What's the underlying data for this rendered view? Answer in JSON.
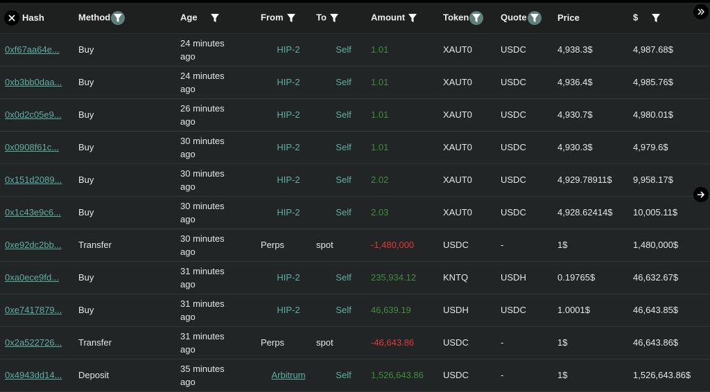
{
  "columns": [
    {
      "label": "Hash",
      "filter": false
    },
    {
      "label": "Method",
      "filter": true,
      "active": true
    },
    {
      "label": "Age",
      "filter": true,
      "active": false
    },
    {
      "label": "From",
      "filter": true,
      "active": false
    },
    {
      "label": "To",
      "filter": true,
      "active": false
    },
    {
      "label": "Amount",
      "filter": true,
      "active": false
    },
    {
      "label": "Token",
      "filter": true,
      "active": true
    },
    {
      "label": "Quote",
      "filter": true,
      "active": true
    },
    {
      "label": "Price",
      "filter": false
    },
    {
      "label": "$",
      "filter": true,
      "active": false
    }
  ],
  "rows": [
    {
      "hash": "0xf67aa64e...",
      "method": "Buy",
      "age": "24 minutes ago",
      "from": "HIP-2",
      "to": "Self",
      "amount": "1.01",
      "sign": "pos",
      "token": "XAUT0",
      "quote": "USDC",
      "price": "4,938.3$",
      "usd": "4,987.68$"
    },
    {
      "hash": "0xb3bb0daa...",
      "method": "Buy",
      "age": "24 minutes ago",
      "from": "HIP-2",
      "to": "Self",
      "amount": "1.01",
      "sign": "pos",
      "token": "XAUT0",
      "quote": "USDC",
      "price": "4,936.4$",
      "usd": "4,985.76$"
    },
    {
      "hash": "0x0d2c05e9...",
      "method": "Buy",
      "age": "26 minutes ago",
      "from": "HIP-2",
      "to": "Self",
      "amount": "1.01",
      "sign": "pos",
      "token": "XAUT0",
      "quote": "USDC",
      "price": "4,930.7$",
      "usd": "4,980.01$"
    },
    {
      "hash": "0x0908f61c...",
      "method": "Buy",
      "age": "30 minutes ago",
      "from": "HIP-2",
      "to": "Self",
      "amount": "1.01",
      "sign": "pos",
      "token": "XAUT0",
      "quote": "USDC",
      "price": "4,930.3$",
      "usd": "4,979.6$"
    },
    {
      "hash": "0x151d2089...",
      "method": "Buy",
      "age": "30 minutes ago",
      "from": "HIP-2",
      "to": "Self",
      "amount": "2.02",
      "sign": "pos",
      "token": "XAUT0",
      "quote": "USDC",
      "price": "4,929.78911$",
      "usd": "9,958.17$"
    },
    {
      "hash": "0x1c43e9c6...",
      "method": "Buy",
      "age": "30 minutes ago",
      "from": "HIP-2",
      "to": "Self",
      "amount": "2.03",
      "sign": "pos",
      "token": "XAUT0",
      "quote": "USDC",
      "price": "4,928.62414$",
      "usd": "10,005.11$"
    },
    {
      "hash": "0xe92dc2bb...",
      "method": "Transfer",
      "age": "30 minutes ago",
      "from": "Perps",
      "to": "spot",
      "amount": "-1,480,000",
      "sign": "neg",
      "token": "USDC",
      "quote": "-",
      "price": "1$",
      "usd": "1,480,000$"
    },
    {
      "hash": "0xa0ece9fd...",
      "method": "Buy",
      "age": "31 minutes ago",
      "from": "HIP-2",
      "to": "Self",
      "amount": "235,934.12",
      "sign": "pos",
      "token": "KNTQ",
      "quote": "USDH",
      "price": "0.19765$",
      "usd": "46,632.67$"
    },
    {
      "hash": "0xe7417879...",
      "method": "Buy",
      "age": "31 minutes ago",
      "from": "HIP-2",
      "to": "Self",
      "amount": "46,639.19",
      "sign": "pos",
      "token": "USDH",
      "quote": "USDC",
      "price": "1.0001$",
      "usd": "46,643.85$"
    },
    {
      "hash": "0x2a522726...",
      "method": "Transfer",
      "age": "31 minutes ago",
      "from": "Perps",
      "to": "spot",
      "amount": "-46,643.86",
      "sign": "neg",
      "token": "USDC",
      "quote": "-",
      "price": "1$",
      "usd": "46,643.86$"
    },
    {
      "hash": "0x4943dd14...",
      "method": "Deposit",
      "age": "35 minutes ago",
      "from": "Arbitrum",
      "to": "Self",
      "amount": "1,526,643.86",
      "sign": "pos",
      "token": "USDC",
      "quote": "-",
      "price": "1$",
      "usd": "1,526,643.86$"
    }
  ],
  "icons": {
    "close": "close-icon",
    "expand": "double-chevron-right-icon",
    "next": "arrow-right-icon",
    "filter": "filter-icon"
  },
  "colors": {
    "link": "#5fb0a4",
    "positive": "#3f8f3a",
    "negative": "#e23a3a"
  }
}
